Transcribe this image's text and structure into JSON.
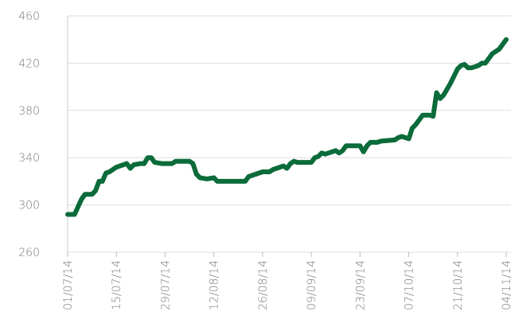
{
  "chart_data": {
    "type": "line",
    "x": [
      "01/07/14",
      "03/07/14",
      "05/07/14",
      "06/07/14",
      "08/07/14",
      "09/07/14",
      "10/07/14",
      "11/07/14",
      "12/07/14",
      "13/07/14",
      "15/07/14",
      "16/07/14",
      "17/07/14",
      "18/07/14",
      "19/07/14",
      "20/07/14",
      "22/07/14",
      "23/07/14",
      "24/07/14",
      "25/07/14",
      "26/07/14",
      "28/07/14",
      "31/07/14",
      "01/08/14",
      "05/08/14",
      "06/08/14",
      "07/08/14",
      "08/08/14",
      "10/08/14",
      "12/08/14",
      "13/08/14",
      "18/08/14",
      "21/08/14",
      "22/08/14",
      "24/08/14",
      "26/08/14",
      "28/08/14",
      "29/08/14",
      "31/08/14",
      "01/09/14",
      "02/09/14",
      "03/09/14",
      "04/09/14",
      "05/09/14",
      "09/09/14",
      "10/09/14",
      "11/09/14",
      "12/09/14",
      "13/09/14",
      "16/09/14",
      "17/09/14",
      "18/09/14",
      "19/09/14",
      "23/09/14",
      "24/09/14",
      "25/09/14",
      "26/09/14",
      "28/09/14",
      "29/09/14",
      "03/10/14",
      "04/10/14",
      "05/10/14",
      "07/10/14",
      "08/10/14",
      "09/10/14",
      "10/10/14",
      "11/10/14",
      "13/10/14",
      "14/10/14",
      "15/10/14",
      "16/10/14",
      "17/10/14",
      "18/10/14",
      "19/10/14",
      "20/10/14",
      "21/10/14",
      "22/10/14",
      "23/10/14",
      "24/10/14",
      "25/10/14",
      "27/10/14",
      "28/10/14",
      "29/10/14",
      "30/10/14",
      "31/10/14",
      "01/11/14",
      "02/11/14",
      "03/11/14",
      "04/11/14"
    ],
    "series": [
      {
        "color": "#0b6b3a",
        "values": [
          292,
          292,
          305,
          309,
          309,
          312,
          320,
          320,
          327,
          328,
          332,
          333,
          334,
          335,
          331,
          334,
          335,
          335,
          340,
          340,
          336,
          335,
          335,
          337,
          337,
          335,
          326,
          323,
          322,
          323,
          320,
          320,
          320,
          324,
          326,
          328,
          328,
          330,
          332,
          333,
          331,
          335,
          337,
          336,
          336,
          340,
          341,
          344,
          343,
          346,
          344,
          346,
          350,
          350,
          345,
          350,
          353,
          353,
          354,
          355,
          357,
          358,
          356,
          365,
          368,
          372,
          376,
          376,
          375,
          395,
          390,
          393,
          398,
          403,
          409,
          415,
          418,
          419,
          416,
          416,
          418,
          420,
          420,
          424,
          428,
          430,
          432,
          436,
          440
        ]
      }
    ],
    "xlim": [
      "01/07/14",
      "04/11/14"
    ],
    "xticks": [
      "01/07/14",
      "15/07/14",
      "29/07/14",
      "12/08/14",
      "26/08/14",
      "09/09/14",
      "23/09/14",
      "07/10/14",
      "21/10/14",
      "04/11/14"
    ],
    "ylim": [
      260,
      460
    ],
    "yticks": [
      260,
      300,
      340,
      380,
      420,
      460
    ],
    "grid": true
  }
}
